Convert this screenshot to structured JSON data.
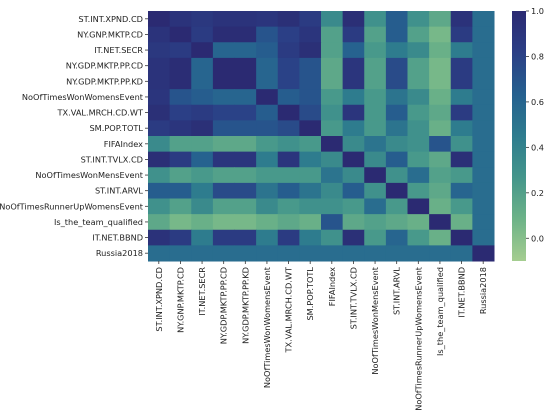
{
  "chart_data": {
    "type": "heatmap",
    "title": "",
    "xlabel": "",
    "ylabel": "",
    "labels": [
      "ST.INT.XPND.CD",
      "NY.GNP.MKTP.CD",
      "IT.NET.SECR",
      "NY.GDP.MKTP.PP.CD",
      "NY.GDP.MKTP.PP.KD",
      "NoOfTimesWonWomensEvent",
      "TX.VAL.MRCH.CD.WT",
      "SM.POP.TOTL",
      "FIFAIndex",
      "ST.INT.TVLX.CD",
      "NoOfTimesWonMensEvent",
      "ST.INT.ARVL",
      "NoOfTimesRunnerUpWomensEvent",
      "Is_the_team_qualified",
      "IT.NET.BBND",
      "Russia2018"
    ],
    "values": [
      [
        1.0,
        0.92,
        0.88,
        0.92,
        0.92,
        0.9,
        0.95,
        0.85,
        0.35,
        0.96,
        0.3,
        0.65,
        0.3,
        0.15,
        0.93,
        0.55
      ],
      [
        0.92,
        1.0,
        0.85,
        0.97,
        0.97,
        0.7,
        0.82,
        0.9,
        0.2,
        0.85,
        0.2,
        0.65,
        0.2,
        0.05,
        0.85,
        0.55
      ],
      [
        0.88,
        0.85,
        1.0,
        0.6,
        0.6,
        0.65,
        0.85,
        0.95,
        0.2,
        0.62,
        0.25,
        0.45,
        0.35,
        0.1,
        0.45,
        0.55
      ],
      [
        0.92,
        0.97,
        0.6,
        1.0,
        1.0,
        0.6,
        0.8,
        0.7,
        0.15,
        0.9,
        0.2,
        0.75,
        0.2,
        0.05,
        0.85,
        0.55
      ],
      [
        0.92,
        0.97,
        0.6,
        1.0,
        1.0,
        0.6,
        0.8,
        0.7,
        0.15,
        0.9,
        0.2,
        0.75,
        0.2,
        0.05,
        0.85,
        0.55
      ],
      [
        0.9,
        0.7,
        0.65,
        0.6,
        0.6,
        1.0,
        0.65,
        0.7,
        0.25,
        0.45,
        0.25,
        0.5,
        0.35,
        0.1,
        0.45,
        0.55
      ],
      [
        0.95,
        0.82,
        0.85,
        0.8,
        0.8,
        0.65,
        1.0,
        0.75,
        0.3,
        0.9,
        0.25,
        0.65,
        0.25,
        0.15,
        0.85,
        0.55
      ],
      [
        0.85,
        0.9,
        0.95,
        0.7,
        0.7,
        0.7,
        0.75,
        1.0,
        0.25,
        0.45,
        0.25,
        0.5,
        0.3,
        0.1,
        0.45,
        0.55
      ],
      [
        0.35,
        0.2,
        0.2,
        0.15,
        0.15,
        0.25,
        0.3,
        0.25,
        1.0,
        0.35,
        0.5,
        0.35,
        0.3,
        0.7,
        0.3,
        0.55
      ],
      [
        0.96,
        0.85,
        0.62,
        0.9,
        0.9,
        0.45,
        0.9,
        0.45,
        0.35,
        1.0,
        0.35,
        0.65,
        0.25,
        0.15,
        0.95,
        0.55
      ],
      [
        0.3,
        0.2,
        0.25,
        0.2,
        0.2,
        0.25,
        0.25,
        0.25,
        0.5,
        0.35,
        1.0,
        0.3,
        0.55,
        0.2,
        0.25,
        0.55
      ],
      [
        0.65,
        0.65,
        0.45,
        0.75,
        0.75,
        0.5,
        0.65,
        0.5,
        0.35,
        0.65,
        0.3,
        1.0,
        0.25,
        0.15,
        0.6,
        0.55
      ],
      [
        0.3,
        0.2,
        0.35,
        0.2,
        0.2,
        0.35,
        0.25,
        0.3,
        0.3,
        0.25,
        0.55,
        0.25,
        1.0,
        0.1,
        0.25,
        0.55
      ],
      [
        0.15,
        0.05,
        0.1,
        0.05,
        0.05,
        0.1,
        0.15,
        0.1,
        0.7,
        0.15,
        0.2,
        0.15,
        0.1,
        1.0,
        0.1,
        0.55
      ],
      [
        0.93,
        0.85,
        0.45,
        0.85,
        0.85,
        0.45,
        0.85,
        0.45,
        0.3,
        0.95,
        0.25,
        0.6,
        0.25,
        0.1,
        1.0,
        0.55
      ],
      [
        0.55,
        0.55,
        0.55,
        0.55,
        0.55,
        0.55,
        0.55,
        0.55,
        0.55,
        0.55,
        0.55,
        0.55,
        0.55,
        0.55,
        0.55,
        1.0
      ]
    ],
    "colormap": "crest",
    "colors": [
      "#a5cd90",
      "#6db388",
      "#44968b",
      "#2e7c8e",
      "#25608f",
      "#2b3f86",
      "#2b2a72"
    ],
    "vmin": -0.1,
    "vmax": 1.0,
    "colorbar_ticks": [
      0.0,
      0.2,
      0.4,
      0.6,
      0.8,
      1.0
    ],
    "colorbar_tick_labels": [
      "0.0",
      "0.2",
      "0.4",
      "0.6",
      "0.8",
      "1.0"
    ],
    "grid": false,
    "legend": "colorbar-right"
  }
}
